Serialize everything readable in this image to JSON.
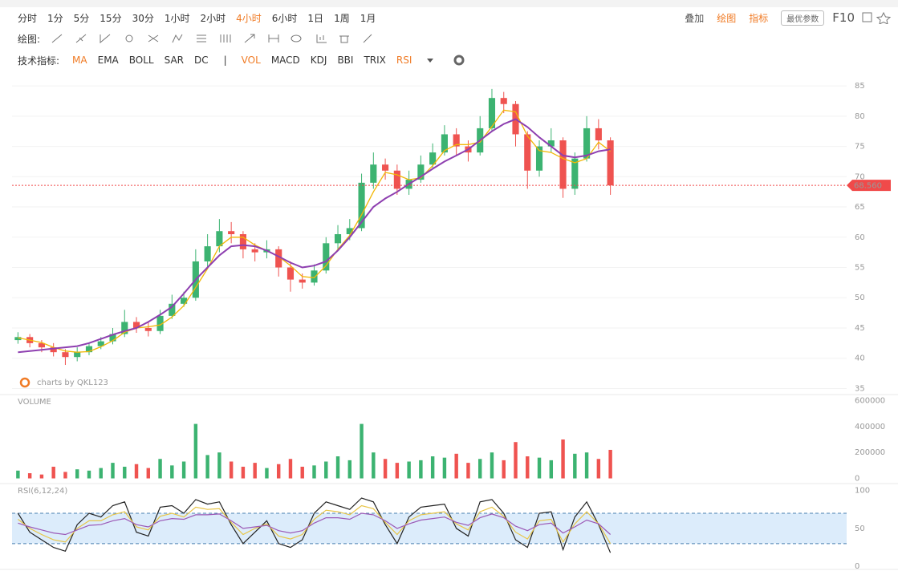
{
  "toolbar": {
    "periods": [
      "分时",
      "1分",
      "5分",
      "15分",
      "30分",
      "1小时",
      "2小时",
      "4小时",
      "6小时",
      "1日",
      "1周",
      "1月"
    ],
    "active_period": "4小时",
    "right": {
      "overlay": "叠加",
      "draw": "绘图",
      "indicators": "指标",
      "best_params": "最优参数",
      "f10": "F10"
    },
    "draw_label": "绘图:",
    "indicator_label": "技术指标:",
    "main_indicators": [
      "MA",
      "EMA",
      "BOLL",
      "SAR",
      "DC"
    ],
    "separator": "|",
    "sub_indicators": [
      "VOL",
      "MACD",
      "KDJ",
      "BBI",
      "TRIX",
      "RSI"
    ],
    "active_indicators": [
      "MA",
      "VOL",
      "RSI"
    ]
  },
  "chart_data": [
    {
      "type": "candlestick",
      "annotation": "charts by QKL123",
      "up_color": "#3cb371",
      "down_color": "#ef5350",
      "open": [
        43,
        43.5,
        42.5,
        41.8,
        41,
        40.2,
        41,
        42,
        42.8,
        44,
        46,
        45,
        44.5,
        47,
        49,
        50,
        56,
        58.5,
        61,
        60.5,
        58,
        57.5,
        58,
        55,
        53,
        52.5,
        54.5,
        59,
        60.5,
        61.5,
        69,
        72,
        71,
        68,
        69.5,
        72,
        74,
        77,
        75,
        74,
        78,
        83,
        82,
        77,
        71,
        75,
        76,
        68,
        73,
        78,
        76
      ],
      "high": [
        44.3,
        44,
        43,
        42.5,
        41.5,
        41.8,
        42.6,
        43.5,
        45,
        48,
        46.8,
        46,
        48,
        50.5,
        51,
        58,
        60.5,
        63,
        62.5,
        61,
        59,
        59.5,
        58.5,
        56,
        54,
        55.5,
        60,
        62,
        63,
        70.5,
        74,
        73,
        72,
        71,
        73.5,
        75.5,
        78.5,
        78,
        76,
        80,
        84.5,
        84,
        82.5,
        77.5,
        76,
        78,
        76.5,
        74,
        80,
        79.5,
        76.5
      ],
      "low": [
        42.4,
        41.8,
        41,
        40.3,
        38.9,
        39.5,
        40.5,
        41.5,
        42.3,
        43.5,
        44.2,
        43.6,
        44,
        46.5,
        48.5,
        49.5,
        55,
        57.5,
        59,
        56.5,
        56,
        56.5,
        53.5,
        51,
        51.5,
        52,
        54,
        58,
        59.5,
        61,
        68,
        69.5,
        67,
        67,
        69,
        71.5,
        73.5,
        73.5,
        72.5,
        73.5,
        77.5,
        80.5,
        75,
        68,
        70,
        74,
        66.5,
        67,
        72.5,
        74.5,
        67
      ],
      "close": [
        43.5,
        42.5,
        41.8,
        41,
        40.2,
        41,
        42,
        42.8,
        44,
        46,
        45,
        44.5,
        47,
        49,
        50,
        56,
        58.5,
        61,
        60.5,
        58,
        57.5,
        58,
        55,
        53,
        52.5,
        54.5,
        59,
        60.5,
        61.5,
        69,
        72,
        71,
        68,
        69.5,
        72,
        74,
        77,
        75,
        74,
        78,
        83,
        82,
        77,
        71,
        75,
        76,
        68,
        73,
        78,
        76,
        68.56
      ],
      "series": [
        {
          "color": "#f2b705",
          "values": [
            43.4,
            43,
            42.6,
            41.8,
            41.2,
            41,
            41.1,
            41.9,
            42.9,
            44.3,
            45,
            45.2,
            45.5,
            46.8,
            48.7,
            51.7,
            54.8,
            58.5,
            60,
            60,
            58.7,
            57.8,
            56.8,
            55.3,
            53.5,
            53.3,
            55.3,
            58,
            60.3,
            63.7,
            67.5,
            70.7,
            70.3,
            69.5,
            69.8,
            71.8,
            74.3,
            75.3,
            75.3,
            75.7,
            78.3,
            81,
            80.7,
            76.7,
            74.3,
            74,
            73,
            72.3,
            73,
            75.7,
            74.2
          ]
        },
        {
          "color": "#8e3fb0",
          "values": [
            41,
            41.2,
            41.4,
            41.6,
            41.8,
            42,
            42.5,
            43.2,
            43.9,
            44.5,
            45,
            46,
            47.2,
            48.5,
            50.7,
            53,
            55,
            57,
            58.5,
            58.7,
            58.5,
            57.8,
            56.8,
            55.8,
            55,
            55.3,
            56,
            57.8,
            60,
            62.5,
            65,
            66.4,
            67.5,
            68.8,
            70,
            71.3,
            72.5,
            73.5,
            74.5,
            76,
            77.5,
            78.7,
            79.5,
            78.2,
            76.5,
            75,
            73.5,
            73.2,
            73.5,
            74.2,
            74.5
          ]
        }
      ],
      "last_price": {
        "value": 68.56,
        "label": "68.560"
      },
      "last_price_color": "#f04a4a",
      "ylim": [
        34,
        87
      ],
      "yticks": [
        35,
        40,
        45,
        50,
        55,
        60,
        65,
        70,
        75,
        80,
        85
      ],
      "grid": true
    },
    {
      "type": "bar",
      "title": "VOLUME",
      "values": [
        60000,
        40000,
        30000,
        90000,
        50000,
        70000,
        60000,
        80000,
        120000,
        90000,
        110000,
        80000,
        150000,
        100000,
        130000,
        420000,
        180000,
        200000,
        130000,
        90000,
        120000,
        80000,
        110000,
        150000,
        90000,
        100000,
        130000,
        170000,
        140000,
        420000,
        200000,
        150000,
        120000,
        130000,
        140000,
        170000,
        160000,
        190000,
        120000,
        150000,
        200000,
        140000,
        280000,
        170000,
        160000,
        140000,
        300000,
        190000,
        200000,
        150000,
        220000
      ],
      "ylim": [
        -40000,
        640000
      ],
      "yticks": [
        0,
        200000,
        400000,
        600000
      ],
      "grid": false
    },
    {
      "type": "line",
      "title": "RSI(6,12,24)",
      "series": [
        {
          "color": "#222222",
          "values": [
            70,
            45,
            35,
            25,
            20,
            55,
            70,
            65,
            80,
            85,
            45,
            40,
            78,
            80,
            70,
            88,
            82,
            85,
            55,
            30,
            45,
            60,
            30,
            25,
            35,
            70,
            85,
            80,
            75,
            90,
            85,
            55,
            30,
            65,
            78,
            80,
            82,
            50,
            40,
            85,
            88,
            70,
            35,
            25,
            70,
            72,
            22,
            65,
            85,
            55,
            18
          ]
        },
        {
          "color": "#e8c547",
          "values": [
            62,
            50,
            42,
            35,
            32,
            50,
            60,
            60,
            68,
            72,
            52,
            48,
            66,
            70,
            65,
            78,
            75,
            76,
            58,
            42,
            50,
            56,
            40,
            36,
            42,
            62,
            74,
            72,
            68,
            80,
            76,
            58,
            42,
            60,
            68,
            70,
            72,
            56,
            48,
            72,
            78,
            66,
            45,
            36,
            60,
            62,
            32,
            56,
            72,
            56,
            30
          ]
        },
        {
          "color": "#9b59b6",
          "values": [
            57,
            52,
            48,
            44,
            42,
            48,
            54,
            55,
            60,
            63,
            55,
            52,
            60,
            63,
            62,
            68,
            68,
            69,
            60,
            50,
            52,
            54,
            47,
            44,
            47,
            57,
            64,
            64,
            62,
            70,
            68,
            60,
            50,
            56,
            61,
            63,
            65,
            58,
            54,
            64,
            69,
            64,
            53,
            47,
            55,
            57,
            44,
            52,
            61,
            56,
            42
          ]
        }
      ],
      "bands": [
        30,
        70
      ],
      "band_color": "#dcecfb",
      "ylim": [
        -4,
        108
      ],
      "yticks": [
        0,
        50,
        100
      ],
      "grid": false
    }
  ]
}
